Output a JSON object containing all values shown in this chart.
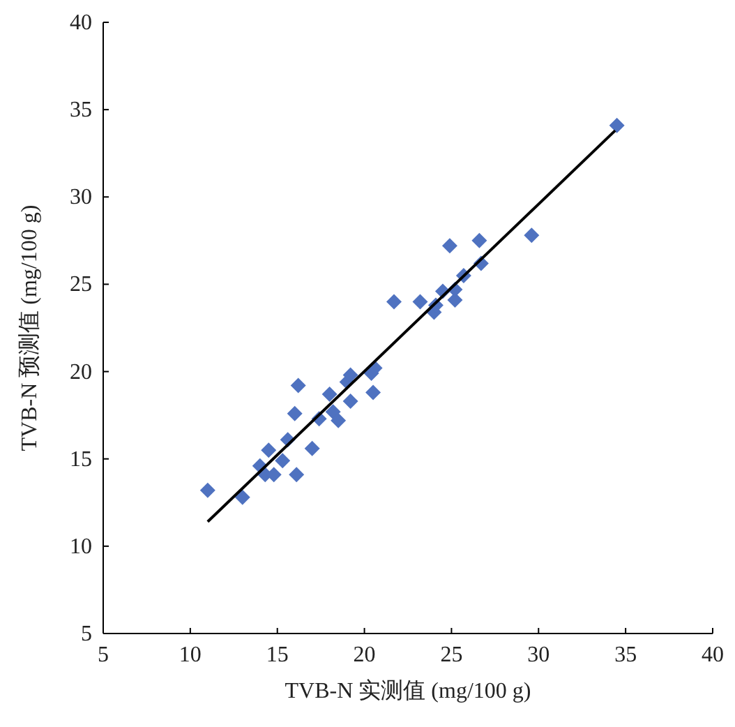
{
  "chart_data": {
    "type": "scatter",
    "xlabel": "TVB-N 实测值 (mg/100 g)",
    "ylabel": "TVB-N 预测值 (mg/100 g)",
    "xlim": [
      5,
      40
    ],
    "xticks": [
      5,
      10,
      15,
      20,
      25,
      30,
      35,
      40
    ],
    "ylim": [
      5,
      40
    ],
    "yticks": [
      5,
      10,
      15,
      20,
      25,
      30,
      35,
      40
    ],
    "grid": false,
    "series": [
      {
        "type": "scatter",
        "marker": "diamond",
        "color": "#4f72c0",
        "x": [
          11.0,
          13.0,
          14.0,
          14.3,
          14.5,
          14.8,
          15.3,
          15.6,
          16.0,
          16.2,
          16.1,
          17.0,
          17.4,
          18.0,
          18.2,
          18.5,
          19.0,
          19.2,
          19.2,
          20.4,
          20.6,
          20.5,
          21.7,
          23.2,
          24.0,
          24.1,
          24.5,
          24.9,
          25.2,
          25.2,
          25.7,
          26.6,
          26.7,
          29.6,
          34.5
        ],
        "values": [
          13.2,
          12.8,
          14.6,
          14.1,
          15.5,
          14.1,
          14.9,
          16.1,
          17.6,
          19.2,
          14.1,
          15.6,
          17.3,
          18.7,
          17.7,
          17.2,
          19.4,
          19.8,
          18.3,
          19.9,
          20.2,
          18.8,
          24.0,
          24.0,
          23.4,
          23.8,
          24.6,
          27.2,
          24.1,
          24.7,
          25.5,
          27.5,
          26.2,
          27.8,
          34.1
        ]
      },
      {
        "type": "line",
        "marker": "none",
        "color": "#000000",
        "line_style": "solid",
        "x": [
          11.0,
          34.4
        ],
        "values": [
          11.4,
          33.8
        ]
      }
    ]
  }
}
